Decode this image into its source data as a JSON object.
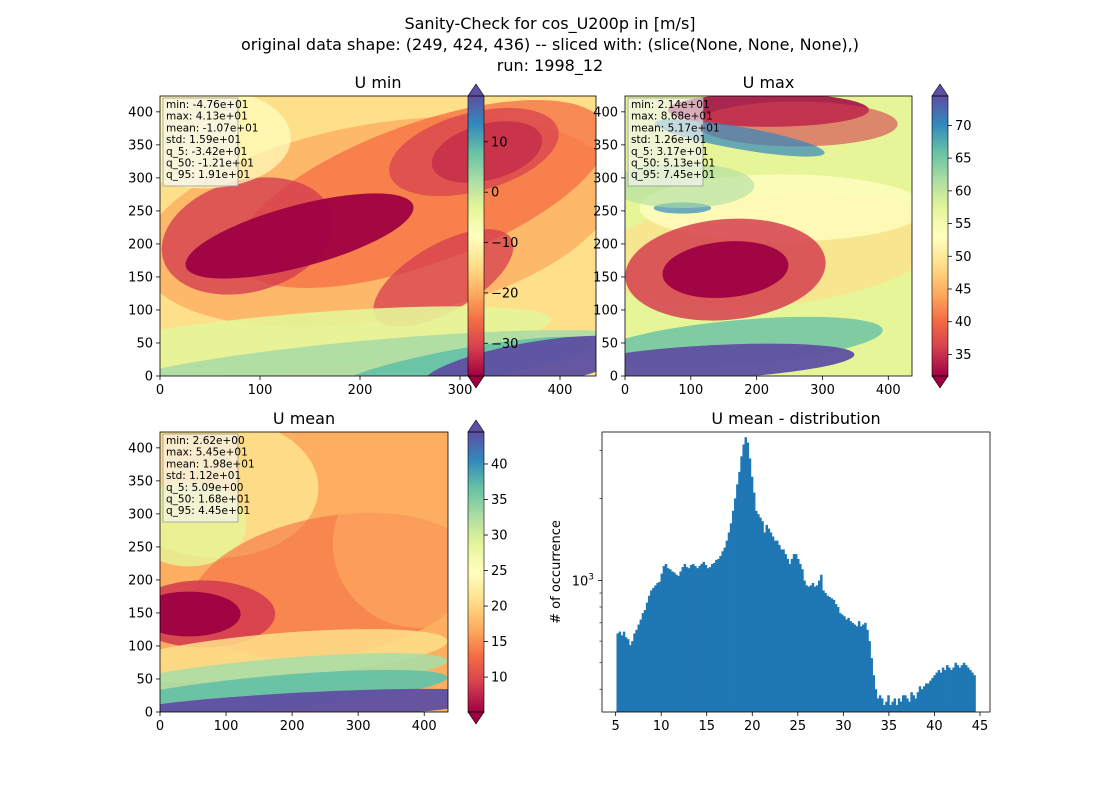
{
  "figure": {
    "title_lines": [
      "Sanity-Check for cos_U200p in [m/s]",
      "original data shape: (249, 424, 436) -- sliced with: (slice(None, None, None),)",
      "run: 1998_12"
    ]
  },
  "colormap": "Spectral",
  "chart_data": [
    {
      "type": "heatmap",
      "title": "U min",
      "x_ticks": [
        0,
        100,
        200,
        300,
        400
      ],
      "y_ticks": [
        0,
        50,
        100,
        150,
        200,
        250,
        300,
        350,
        400
      ],
      "xlim": [
        0,
        436
      ],
      "ylim": [
        0,
        424
      ],
      "colorbar": {
        "vmin": -36.5,
        "vmax": 19.1,
        "ticks": [
          10,
          0,
          -10,
          -20,
          -30
        ],
        "tick_labels": [
          "10",
          "0",
          "−10",
          "−20",
          "−30"
        ],
        "extend": "both"
      },
      "stats": [
        "min: -4.76e+01",
        "max: 4.13e+01",
        "mean: -1.07e+01",
        "std: 1.59e+01",
        "q_5: -3.42e+01",
        "q_50: -1.21e+01",
        "q_95: 1.91e+01"
      ]
    },
    {
      "type": "heatmap",
      "title": "U max",
      "x_ticks": [
        0,
        100,
        200,
        300,
        400
      ],
      "y_ticks": [
        0,
        50,
        100,
        150,
        200,
        250,
        300,
        350,
        400
      ],
      "xlim": [
        0,
        436
      ],
      "ylim": [
        0,
        424
      ],
      "colorbar": {
        "vmin": 31.7,
        "vmax": 74.5,
        "ticks": [
          70,
          65,
          60,
          55,
          50,
          45,
          40,
          35
        ],
        "tick_labels": [
          "70",
          "65",
          "60",
          "55",
          "50",
          "45",
          "40",
          "35"
        ],
        "extend": "both"
      },
      "stats": [
        "min: 2.14e+01",
        "max: 8.68e+01",
        "mean: 5.17e+01",
        "std: 1.26e+01",
        "q_5: 3.17e+01",
        "q_50: 5.13e+01",
        "q_95: 7.45e+01"
      ]
    },
    {
      "type": "heatmap",
      "title": "U mean",
      "x_ticks": [
        0,
        100,
        200,
        300,
        400
      ],
      "y_ticks": [
        0,
        50,
        100,
        150,
        200,
        250,
        300,
        350,
        400
      ],
      "xlim": [
        0,
        436
      ],
      "ylim": [
        0,
        424
      ],
      "colorbar": {
        "vmin": 5.09,
        "vmax": 44.5,
        "ticks": [
          40,
          35,
          30,
          25,
          20,
          15,
          10
        ],
        "tick_labels": [
          "40",
          "35",
          "30",
          "25",
          "20",
          "15",
          "10"
        ],
        "extend": "both"
      },
      "stats": [
        "min: 2.62e+00",
        "max: 5.45e+01",
        "mean: 1.98e+01",
        "std: 1.12e+01",
        "q_5: 5.09e+00",
        "q_50: 1.68e+01",
        "q_95: 4.45e+01"
      ]
    },
    {
      "type": "bar",
      "title": "U mean - distribution",
      "ylabel": "# of occurrence",
      "x_ticks": [
        5,
        10,
        15,
        20,
        25,
        30,
        35,
        40,
        45
      ],
      "xlim": [
        3.5,
        46.1
      ],
      "y_log": true,
      "ylim": [
        330,
        3500
      ],
      "y_tick_label": "10",
      "y_tick_exponent": "3",
      "bar_color": "#1f77b4",
      "bin_edges_range": [
        5.09,
        44.5
      ],
      "values": [
        640,
        650,
        630,
        650,
        620,
        610,
        580,
        600,
        640,
        660,
        690,
        720,
        760,
        780,
        830,
        880,
        920,
        940,
        960,
        980,
        990,
        1060,
        1130,
        1150,
        1110,
        1100,
        1080,
        1070,
        1050,
        1040,
        1080,
        1120,
        1150,
        1120,
        1110,
        1140,
        1150,
        1130,
        1110,
        1130,
        1150,
        1170,
        1140,
        1110,
        1120,
        1150,
        1160,
        1190,
        1200,
        1230,
        1280,
        1320,
        1400,
        1500,
        1620,
        1800,
        2000,
        2250,
        2500,
        2850,
        3150,
        3350,
        3200,
        2800,
        2400,
        2100,
        1800,
        1750,
        1700,
        1650,
        1500,
        1600,
        1550,
        1500,
        1450,
        1400,
        1400,
        1350,
        1300,
        1300,
        1250,
        1200,
        1150,
        1200,
        1250,
        1250,
        1200,
        1150,
        1100,
        1000,
        960,
        950,
        960,
        980,
        950,
        960,
        1000,
        1050,
        920,
        900,
        880,
        870,
        860,
        850,
        820,
        800,
        760,
        750,
        740,
        720,
        730,
        710,
        700,
        690,
        680,
        710,
        680,
        690,
        700,
        660,
        600,
        520,
        450,
        400,
        370,
        380,
        370,
        350,
        360,
        380,
        350,
        360,
        370,
        350,
        370,
        360,
        380,
        380,
        370,
        360,
        390,
        380,
        370,
        390,
        410,
        400,
        410,
        420,
        420,
        430,
        440,
        450,
        460,
        470,
        460,
        480,
        470,
        490,
        480,
        470,
        480,
        500,
        490,
        480,
        490,
        500,
        490,
        480,
        470,
        460,
        450
      ]
    }
  ]
}
